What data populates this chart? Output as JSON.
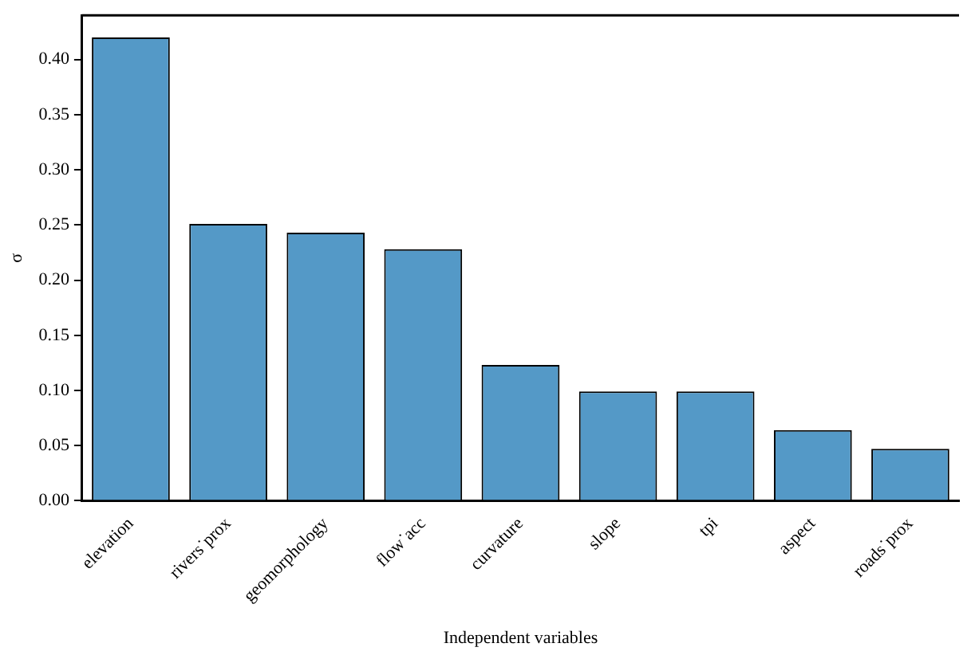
{
  "chart_data": {
    "type": "bar",
    "xlabel": "Independent variables",
    "ylabel": "σ",
    "categories": [
      "elevation",
      "rivers˙prox",
      "geomorphology",
      "flow˙acc",
      "curvature",
      "slope",
      "tpi",
      "aspect",
      "roads˙prox"
    ],
    "values": [
      0.42,
      0.251,
      0.243,
      0.228,
      0.123,
      0.099,
      0.099,
      0.064,
      0.047
    ],
    "color": "#5499c7",
    "ylim": [
      0,
      0.44
    ],
    "yticks": [
      {
        "value": 0,
        "label": "0.00"
      },
      {
        "value": 0.05,
        "label": "0.05"
      },
      {
        "value": 0.1,
        "label": "0.10"
      },
      {
        "value": 0.15,
        "label": "0.15"
      },
      {
        "value": 0.2,
        "label": "0.20"
      },
      {
        "value": 0.25,
        "label": "0.25"
      },
      {
        "value": 0.3,
        "label": "0.30"
      },
      {
        "value": 0.35,
        "label": "0.35"
      },
      {
        "value": 0.4,
        "label": "0.40"
      }
    ],
    "grid": false,
    "legend": false
  }
}
